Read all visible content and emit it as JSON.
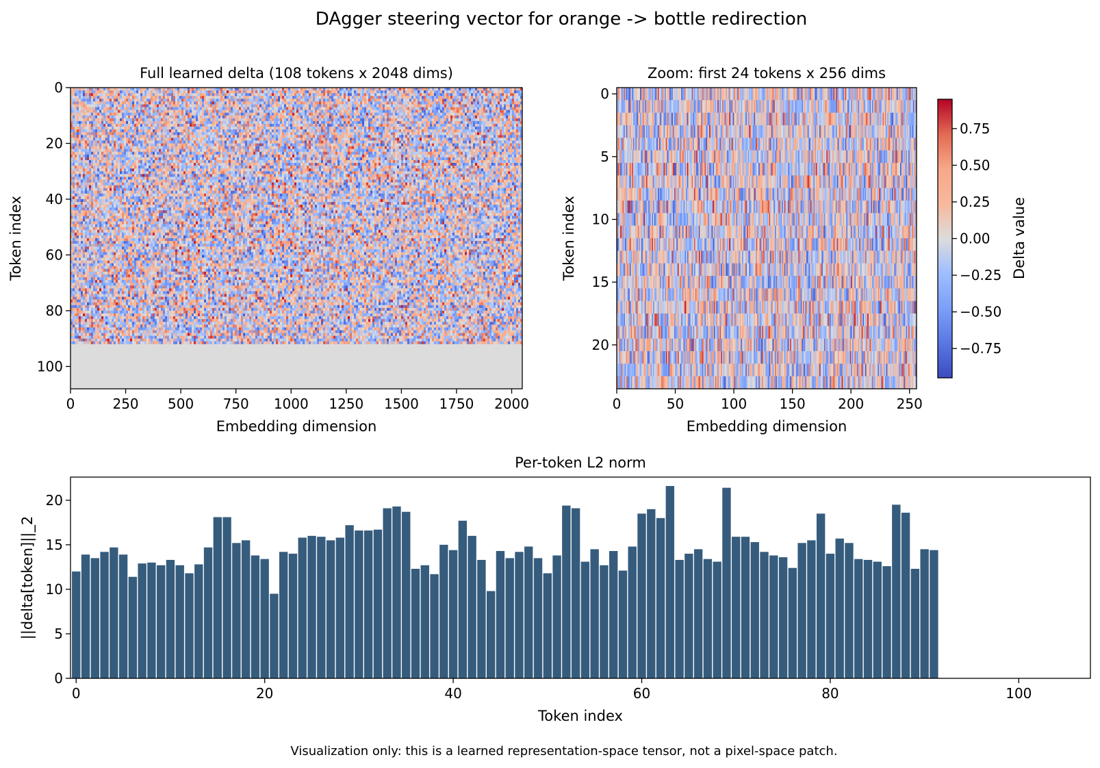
{
  "figure": {
    "suptitle": "DAgger steering vector for orange -> bottle redirection",
    "footnote": "Visualization only: this is a learned representation-space tensor, not a pixel-space patch."
  },
  "chart_data": [
    {
      "type": "heatmap",
      "title": "Full learned delta (108 tokens x 2048 dims)",
      "xlabel": "Embedding dimension",
      "ylabel": "Token index",
      "xlim": [
        0,
        2048
      ],
      "ylim": [
        108,
        0
      ],
      "xticks": [
        0,
        250,
        500,
        750,
        1000,
        1250,
        1500,
        1750,
        2000
      ],
      "yticks": [
        0,
        20,
        40,
        60,
        80,
        100
      ],
      "colormap": "coolwarm",
      "nonzero_tokens": 92,
      "zero_rows_value": 0.0
    },
    {
      "type": "heatmap",
      "title": "Zoom: first 24 tokens x 256 dims",
      "xlabel": "Embedding dimension",
      "ylabel": "Token index",
      "xlim": [
        0,
        256
      ],
      "ylim": [
        24,
        0
      ],
      "xticks": [
        0,
        50,
        100,
        150,
        200,
        250
      ],
      "yticks": [
        0,
        5,
        10,
        15,
        20
      ],
      "colormap": "coolwarm",
      "colorbar": {
        "label": "Delta value",
        "range": [
          -0.95,
          0.95
        ],
        "ticks": [
          "0.75",
          "0.50",
          "0.25",
          "0.00",
          "−0.25",
          "−0.50",
          "−0.75"
        ],
        "tick_values": [
          0.75,
          0.5,
          0.25,
          0.0,
          -0.25,
          -0.5,
          -0.75
        ]
      }
    },
    {
      "type": "bar",
      "title": "Per-token L2 norm",
      "xlabel": "Token index",
      "ylabel": "||delta[token]||_2",
      "xlim": [
        -0.6,
        107.6
      ],
      "ylim": [
        0,
        22.6
      ],
      "xticks": [
        0,
        20,
        40,
        60,
        80,
        100
      ],
      "yticks": [
        0,
        5,
        10,
        15,
        20
      ],
      "bar_color": "#365c7d",
      "x": [
        0,
        1,
        2,
        3,
        4,
        5,
        6,
        7,
        8,
        9,
        10,
        11,
        12,
        13,
        14,
        15,
        16,
        17,
        18,
        19,
        20,
        21,
        22,
        23,
        24,
        25,
        26,
        27,
        28,
        29,
        30,
        31,
        32,
        33,
        34,
        35,
        36,
        37,
        38,
        39,
        40,
        41,
        42,
        43,
        44,
        45,
        46,
        47,
        48,
        49,
        50,
        51,
        52,
        53,
        54,
        55,
        56,
        57,
        58,
        59,
        60,
        61,
        62,
        63,
        64,
        65,
        66,
        67,
        68,
        69,
        70,
        71,
        72,
        73,
        74,
        75,
        76,
        77,
        78,
        79,
        80,
        81,
        82,
        83,
        84,
        85,
        86,
        87,
        88,
        89,
        90,
        91
      ],
      "values": [
        12.0,
        13.9,
        13.5,
        14.2,
        14.7,
        13.9,
        11.4,
        12.9,
        13.0,
        12.7,
        13.3,
        12.7,
        11.8,
        12.8,
        14.7,
        18.1,
        18.1,
        15.2,
        15.5,
        13.8,
        13.4,
        9.5,
        14.2,
        14.0,
        15.8,
        16.0,
        15.9,
        15.5,
        15.8,
        17.2,
        16.6,
        16.6,
        16.7,
        19.1,
        19.3,
        18.7,
        12.3,
        12.7,
        11.7,
        15.0,
        14.4,
        17.7,
        16.0,
        13.3,
        9.8,
        14.3,
        13.5,
        14.2,
        14.8,
        13.5,
        11.8,
        13.8,
        19.4,
        19.1,
        13.1,
        14.5,
        12.7,
        14.3,
        12.1,
        14.8,
        18.5,
        19.0,
        18.0,
        21.6,
        13.3,
        14.0,
        14.5,
        13.4,
        13.1,
        21.4,
        15.9,
        15.9,
        15.3,
        14.2,
        13.8,
        13.6,
        12.4,
        15.2,
        15.5,
        18.5,
        14.0,
        15.7,
        15.2,
        13.4,
        13.3,
        13.1,
        12.6,
        19.5,
        18.6,
        12.3,
        14.5,
        14.4
      ]
    }
  ]
}
